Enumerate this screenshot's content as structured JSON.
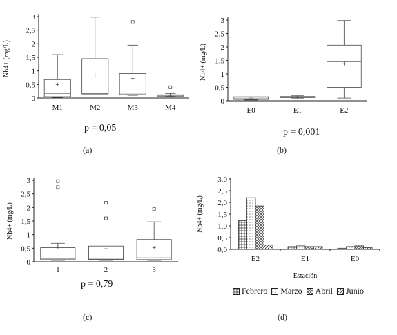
{
  "chart_data": [
    {
      "type": "box",
      "ylabel": "Nh4+ (mg/L)",
      "ylim": [
        0,
        3
      ],
      "yticks": [
        "0",
        "0,5",
        "1",
        "1,5",
        "2",
        "2,5",
        "3"
      ],
      "categories": [
        "M1",
        "M2",
        "M3",
        "M4"
      ],
      "boxes": [
        {
          "whisker_low": 0.02,
          "q1": 0.05,
          "median": 0.17,
          "q3": 0.68,
          "whisker_high": 1.6,
          "mean": 0.5,
          "outliers": []
        },
        {
          "whisker_low": 0.15,
          "q1": 0.15,
          "median": 0.17,
          "q3": 1.45,
          "whisker_high": 2.98,
          "mean": 0.85,
          "outliers": []
        },
        {
          "whisker_low": 0.1,
          "q1": 0.12,
          "median": 0.15,
          "q3": 0.9,
          "whisker_high": 1.95,
          "mean": 0.72,
          "outliers": [
            2.8
          ]
        },
        {
          "whisker_low": 0.05,
          "q1": 0.07,
          "median": 0.1,
          "q3": 0.12,
          "whisker_high": 0.17,
          "mean": 0.1,
          "outliers": [
            0.4
          ]
        }
      ],
      "annotation": "p = 0,05",
      "panel_label": "(a)"
    },
    {
      "type": "box",
      "ylabel": "Nh4+ (mg/L)",
      "ylim": [
        0,
        3
      ],
      "yticks": [
        "0",
        "0,5",
        "1",
        "1,5",
        "2",
        "2,5",
        "3"
      ],
      "categories": [
        "E0",
        "E1",
        "E2"
      ],
      "boxes": [
        {
          "whisker_low": 0.03,
          "q1": 0.05,
          "median": 0.1,
          "q3": 0.15,
          "whisker_high": 0.22,
          "mean": 0.1,
          "outliers": []
        },
        {
          "whisker_low": 0.1,
          "q1": 0.12,
          "median": 0.14,
          "q3": 0.16,
          "whisker_high": 0.2,
          "mean": 0.14,
          "outliers": []
        },
        {
          "whisker_low": 0.1,
          "q1": 0.5,
          "median": 1.45,
          "q3": 2.07,
          "whisker_high": 2.98,
          "mean": 1.38,
          "outliers": []
        }
      ],
      "annotation": "p = 0,001",
      "panel_label": "(b)"
    },
    {
      "type": "box",
      "ylabel": "Nh4+ (mg/L)",
      "ylim": [
        0,
        3
      ],
      "yticks": [
        "0",
        "0,5",
        "1",
        "1,5",
        "2",
        "2,5",
        "3"
      ],
      "categories": [
        "1",
        "2",
        "3"
      ],
      "boxes": [
        {
          "whisker_low": 0.05,
          "q1": 0.08,
          "median": 0.12,
          "q3": 0.52,
          "whisker_high": 0.68,
          "mean": 0.55,
          "outliers": [
            2.75,
            2.97
          ]
        },
        {
          "whisker_low": 0.05,
          "q1": 0.08,
          "median": 0.1,
          "q3": 0.58,
          "whisker_high": 0.88,
          "mean": 0.48,
          "outliers": [
            1.6,
            2.17
          ]
        },
        {
          "whisker_low": 0.05,
          "q1": 0.08,
          "median": 0.15,
          "q3": 0.82,
          "whisker_high": 1.47,
          "mean": 0.52,
          "outliers": [
            1.95
          ]
        }
      ],
      "annotation": "p = 0,79",
      "panel_label": "(c)"
    },
    {
      "type": "bar",
      "ylabel": "Nh4+ (mg/L)",
      "xlabel": "Estación",
      "ylim": [
        0,
        3
      ],
      "yticks": [
        "0,0",
        "0,5",
        "1,0",
        "1,5",
        "2,0",
        "2,5",
        "3,0"
      ],
      "categories": [
        "E2",
        "E1",
        "E0"
      ],
      "series": [
        {
          "name": "Febrero",
          "values": [
            1.22,
            0.12,
            0.05
          ],
          "pattern": "grid"
        },
        {
          "name": "Marzo",
          "values": [
            2.2,
            0.15,
            0.12
          ],
          "pattern": "dots"
        },
        {
          "name": "Abril",
          "values": [
            1.85,
            0.12,
            0.15
          ],
          "pattern": "cross"
        },
        {
          "name": "Junio",
          "values": [
            0.18,
            0.12,
            0.08
          ],
          "pattern": "diag"
        }
      ],
      "panel_label": "(d)"
    }
  ]
}
